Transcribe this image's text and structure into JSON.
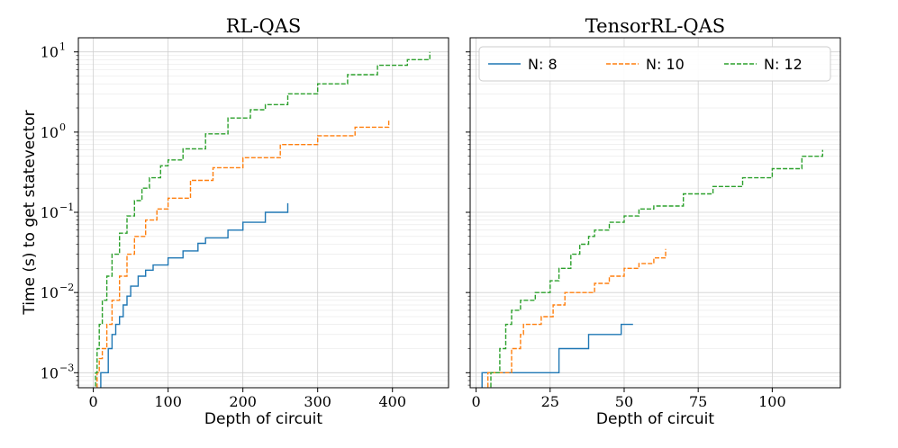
{
  "chart_data": [
    {
      "type": "line",
      "title": "RL-QAS",
      "xlabel": "Depth of circuit",
      "ylabel": "Time (s) to get statevector",
      "yscale": "log",
      "xlim": [
        -20,
        475
      ],
      "ylim": [
        0.00065,
        15
      ],
      "xticks": [
        0,
        100,
        200,
        300,
        400
      ],
      "xtick_labels": [
        "0",
        "100",
        "200",
        "300",
        "400"
      ],
      "yticks": [
        0.001,
        0.01,
        0.1,
        1,
        10
      ],
      "ytick_labels": [
        "10",
        "10",
        "10",
        "10",
        "10"
      ],
      "ytick_exponents": [
        "−3",
        "−2",
        "−1",
        "0",
        "1"
      ],
      "grid": true,
      "series": [
        {
          "name": "N: 8",
          "color": "#1f77b4",
          "dash": "solid",
          "x": [
            0,
            10,
            12,
            20,
            25,
            30,
            35,
            40,
            45,
            50,
            60,
            70,
            80,
            100,
            120,
            140,
            150,
            180,
            200,
            230,
            260
          ],
          "y": [
            0.0006,
            0.001,
            0.001,
            0.002,
            0.003,
            0.004,
            0.005,
            0.007,
            0.009,
            0.012,
            0.016,
            0.019,
            0.022,
            0.027,
            0.033,
            0.041,
            0.048,
            0.06,
            0.075,
            0.1,
            0.13
          ]
        },
        {
          "name": "N: 10",
          "color": "#ff7f0e",
          "dash": "dashed",
          "x": [
            0,
            5,
            8,
            12,
            18,
            25,
            35,
            45,
            55,
            70,
            85,
            100,
            130,
            160,
            200,
            250,
            300,
            350,
            395
          ],
          "y": [
            0.0006,
            0.001,
            0.0015,
            0.002,
            0.004,
            0.008,
            0.016,
            0.03,
            0.05,
            0.08,
            0.11,
            0.15,
            0.25,
            0.36,
            0.48,
            0.7,
            0.9,
            1.15,
            1.4
          ]
        },
        {
          "name": "N: 12",
          "color": "#2ca02c",
          "dash": "dashed",
          "x": [
            0,
            3,
            5,
            8,
            12,
            18,
            25,
            35,
            45,
            55,
            65,
            75,
            90,
            100,
            120,
            150,
            180,
            210,
            230,
            260,
            300,
            340,
            380,
            420,
            450
          ],
          "y": [
            0.0006,
            0.001,
            0.002,
            0.004,
            0.008,
            0.016,
            0.03,
            0.055,
            0.09,
            0.14,
            0.2,
            0.27,
            0.38,
            0.45,
            0.62,
            0.95,
            1.5,
            1.9,
            2.2,
            3.0,
            4.0,
            5.2,
            6.8,
            8.0,
            10.0
          ]
        }
      ]
    },
    {
      "type": "line",
      "title": "TensorRL-QAS",
      "xlabel": "Depth of circuit",
      "ylabel": "",
      "yscale": "log",
      "xlim": [
        -2,
        123
      ],
      "ylim": [
        0.00065,
        15
      ],
      "xticks": [
        0,
        25,
        50,
        75,
        100
      ],
      "xtick_labels": [
        "0",
        "25",
        "50",
        "75",
        "100"
      ],
      "yticks": [
        0.001,
        0.01,
        0.1,
        1,
        10
      ],
      "grid": true,
      "legend": "top",
      "series": [
        {
          "name": "N: 8",
          "color": "#1f77b4",
          "dash": "solid",
          "x": [
            1,
            2,
            27,
            28,
            37,
            38,
            48,
            49,
            53
          ],
          "y": [
            0.0006,
            0.001,
            0.001,
            0.002,
            0.002,
            0.003,
            0.003,
            0.004,
            0.004
          ]
        },
        {
          "name": "N: 10",
          "color": "#ff7f0e",
          "dash": "dashed",
          "x": [
            3,
            4,
            11,
            12,
            15,
            16,
            20,
            22,
            26,
            30,
            35,
            40,
            45,
            50,
            55,
            60,
            64
          ],
          "y": [
            0.0006,
            0.001,
            0.001,
            0.002,
            0.003,
            0.004,
            0.004,
            0.005,
            0.007,
            0.01,
            0.01,
            0.013,
            0.016,
            0.02,
            0.023,
            0.027,
            0.035
          ]
        },
        {
          "name": "N: 12",
          "color": "#2ca02c",
          "dash": "dashed",
          "x": [
            4,
            5,
            8,
            10,
            12,
            15,
            20,
            25,
            28,
            32,
            35,
            38,
            40,
            45,
            50,
            55,
            60,
            70,
            80,
            90,
            100,
            110,
            117
          ],
          "y": [
            0.0006,
            0.001,
            0.002,
            0.004,
            0.006,
            0.008,
            0.01,
            0.014,
            0.02,
            0.03,
            0.04,
            0.05,
            0.06,
            0.075,
            0.09,
            0.11,
            0.12,
            0.17,
            0.21,
            0.27,
            0.35,
            0.5,
            0.6
          ]
        }
      ]
    }
  ]
}
